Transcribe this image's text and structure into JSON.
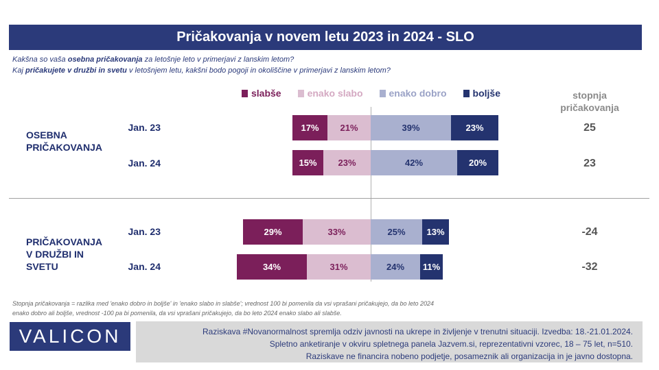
{
  "title": "Pričakovanja v novem letu 2023 in 2024 - SLO",
  "questions": {
    "q1_pre": "Kakšna so vaša ",
    "q1_bold": "osebna pričakovanja",
    "q1_post": " za letošnje leto v primerjavi z lanskim letom?",
    "q2_pre": "Kaj ",
    "q2_bold": "pričakujete v družbi in svetu",
    "q2_post": " v letošnjem letu, kakšni bodo pogoji in okoliščine v primerjavi z lanskim letom?"
  },
  "stopnja_header": "stopnja pričakovanja",
  "footnote": "Stopnja pričakovanja = razlika med 'enako dobro in boljše' in 'enako slabo in slabše'; vrednost 100 bi pomenila da vsi vprašani pričakujejo, da bo leto 2024 enako dobro ali boljše, vrednost -100 pa bi pomenila, da vsi vprašani pričakujejo, da bo leto 2024 enako slabo ali slabše.",
  "logo": "VALICON",
  "info": [
    "Raziskava #Novanormalnost spremlja odziv javnosti na ukrepe in življenje v trenutni situaciji. Izvedba: 18.-21.01.2024.",
    "Spletno anketiranje v okviru spletnega panela Jazvem.si, reprezentativni vzorec, 18 – 75 let, n=510.",
    "Raziskave ne financira nobeno podjetje, posameznik ali organizacija in je javno dostopna."
  ],
  "colors": {
    "slabse": "#7b1f5a",
    "enako_slabo": "#dbbdd0",
    "enako_dobro": "#a9b0cf",
    "boljse": "#24336f",
    "title_bg": "#2b3a7a"
  },
  "chart_data": {
    "type": "bar",
    "orientation": "horizontal-diverging",
    "series": [
      {
        "name": "slabše",
        "key": "slabse"
      },
      {
        "name": "enako slabo",
        "key": "enako_slabo"
      },
      {
        "name": "enako dobro",
        "key": "enako_dobro"
      },
      {
        "name": "boljše",
        "key": "boljse"
      }
    ],
    "groups": [
      {
        "label": "OSEBNA PRIČAKOVANJA",
        "rows": [
          {
            "label": "Jan. 23",
            "values": [
              17,
              21,
              39,
              23
            ],
            "score": "25"
          },
          {
            "label": "Jan. 24",
            "values": [
              15,
              23,
              42,
              20
            ],
            "score": "23"
          }
        ]
      },
      {
        "label": "PRIČAKOVANJA V DRUŽBI IN SVETU",
        "rows": [
          {
            "label": "Jan. 23",
            "values": [
              29,
              33,
              25,
              13
            ],
            "score": "-24"
          },
          {
            "label": "Jan. 24",
            "values": [
              34,
              31,
              24,
              11
            ],
            "score": "-32"
          }
        ]
      }
    ]
  }
}
